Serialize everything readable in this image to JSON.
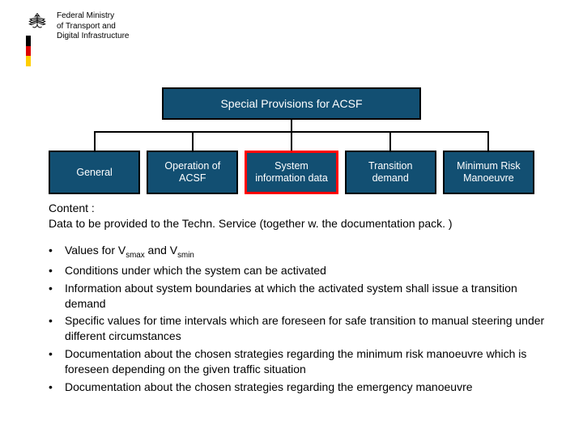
{
  "header": {
    "ministry_lines": [
      "Federal Ministry",
      "of Transport and",
      "Digital Infrastructure"
    ],
    "flag_colors": [
      "#000000",
      "#dd0000",
      "#ffce00"
    ]
  },
  "chart": {
    "parent_label": "Special Provisions for ACSF",
    "box_bg": "#124f72",
    "box_fg": "#ffffff",
    "box_border": "#000000",
    "selected_border": "#ff0000",
    "children": [
      {
        "label": "General",
        "selected": false
      },
      {
        "label": "Operation of ACSF",
        "selected": false
      },
      {
        "label": "System information data",
        "selected": true
      },
      {
        "label": "Transition demand",
        "selected": false
      },
      {
        "label": "Minimum Risk Manoeuvre",
        "selected": false
      }
    ]
  },
  "content": {
    "heading_line1": "Content :",
    "heading_line2": "Data to be provided to the Techn. Service (together w. the documentation pack. )",
    "bullets": [
      "Values for V<sub>smax</sub> and V<sub>smin</sub>",
      "Conditions under which the system can be activated",
      "Information about system boundaries at which the activated system shall issue a transition demand",
      "Specific values for time intervals which are foreseen for safe transition to manual steering under different circumstances",
      "Documentation about the chosen strategies regarding the minimum risk manoeuvre which is foreseen depending on the given traffic situation",
      "Documentation about the chosen strategies regarding the emergency manoeuvre"
    ]
  }
}
